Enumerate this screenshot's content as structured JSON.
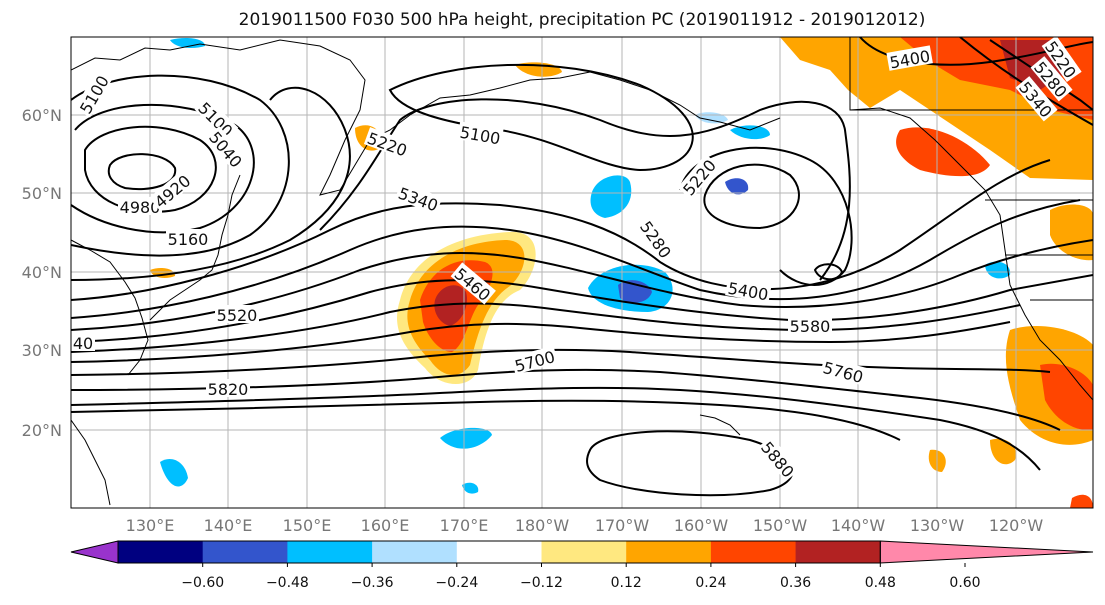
{
  "title": "2019011500 F030 500 hPa height, precipitation PC (2019011912 - 2019012012)",
  "lat_labels": [
    "60°N",
    "50°N",
    "40°N",
    "30°N",
    "20°N"
  ],
  "lon_labels": [
    "130°E",
    "140°E",
    "150°E",
    "160°E",
    "170°E",
    "180°W",
    "170°W",
    "160°W",
    "150°W",
    "140°W",
    "130°W",
    "120°W"
  ],
  "colorbar": {
    "ticks": [
      "−0.60",
      "−0.48",
      "−0.36",
      "−0.24",
      "−0.12",
      "0.12",
      "0.24",
      "0.36",
      "0.48",
      "0.60"
    ],
    "colors": [
      "#9933cc",
      "#000080",
      "#3355cc",
      "#00bfff",
      "#b0e0ff",
      "#ffffff",
      "#ffe880",
      "#ffa500",
      "#ff4500",
      "#b22222",
      "#ff88aa"
    ]
  },
  "contour_labels": [
    "5100",
    "5100",
    "5100",
    "5040",
    "4980",
    "4920",
    "5160",
    "5220",
    "5220",
    "5340",
    "5460",
    "5520",
    "5280",
    "5400",
    "5580",
    "5700",
    "5760",
    "5820",
    "5880",
    "5400",
    "5280",
    "5340",
    "5220",
    "40"
  ],
  "colors": {
    "contour": "#000000",
    "grid": "#b5b5b5",
    "axis_label": "#777777"
  }
}
